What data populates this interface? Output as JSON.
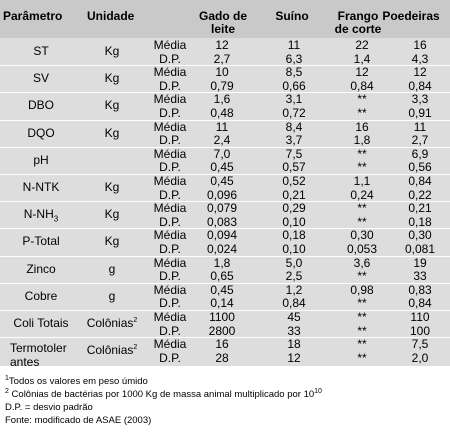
{
  "headers": {
    "param": "Parâmetro",
    "unit": "Unidade",
    "gado_line1": "Gado de",
    "gado_line2": "leite",
    "suino": "Suíno",
    "frango_line1": "Frango",
    "frango_line2": "de corte",
    "poedeiras": "Poedeiras"
  },
  "rows": [
    {
      "param": "ST",
      "unit": "Kg",
      "media": [
        "12",
        "11",
        "22",
        "16"
      ],
      "dp": [
        "2,7",
        "6,3",
        "1,4",
        "4,3"
      ]
    },
    {
      "param": "SV",
      "unit": "Kg",
      "media": [
        "10",
        "8,5",
        "12",
        "12"
      ],
      "dp": [
        "0,79",
        "0,66",
        "0,84",
        "0,84"
      ]
    },
    {
      "param": "DBO",
      "unit": "Kg",
      "media": [
        "1,6",
        "3,1",
        "**",
        "3,3"
      ],
      "dp": [
        "0,48",
        "0,72",
        "**",
        "0,91"
      ]
    },
    {
      "param": "DQO",
      "unit": "Kg",
      "media": [
        "11",
        "8,4",
        "16",
        "11"
      ],
      "dp": [
        "2,4",
        "3,7",
        "1,8",
        "2,7"
      ]
    },
    {
      "param": "pH",
      "unit": "",
      "media": [
        "7,0",
        "7,5",
        "**",
        "6,9"
      ],
      "dp": [
        "0,45",
        "0,57",
        "**",
        "0,56"
      ]
    },
    {
      "param": "N-NTK",
      "unit": "Kg",
      "media": [
        "0,45",
        "0,52",
        "1,1",
        "0,84"
      ],
      "dp": [
        "0,096",
        "0,21",
        "0,24",
        "0,22"
      ]
    },
    {
      "param": "N-NH",
      "param_sub": "3",
      "unit": "Kg",
      "media": [
        "0,079",
        "0,29",
        "**",
        "0,21"
      ],
      "dp": [
        "0,083",
        "0,10",
        "**",
        "0,18"
      ]
    },
    {
      "param": "P-Total",
      "unit": "Kg",
      "media": [
        "0,094",
        "0,18",
        "0,30",
        "0,30"
      ],
      "dp": [
        "0,024",
        "0,10",
        "0,053",
        "0,081"
      ]
    },
    {
      "param": "Zinco",
      "unit": "g",
      "media": [
        "1,8",
        "5,0",
        "3,6",
        "19"
      ],
      "dp": [
        "0,65",
        "2,5",
        "**",
        "33"
      ]
    },
    {
      "param": "Cobre",
      "unit": "g",
      "media": [
        "0,45",
        "1,2",
        "0,98",
        "0,83"
      ],
      "dp": [
        "0,14",
        "0,84",
        "**",
        "0,84"
      ]
    },
    {
      "param": "Coli Totais",
      "unit": "Colônias",
      "unit_sup": "2",
      "media": [
        "1100",
        "45",
        "**",
        "110"
      ],
      "dp": [
        "2800",
        "33",
        "**",
        "100"
      ]
    },
    {
      "param": "Termotoler",
      "param_line2": "antes",
      "unit": "Colônias",
      "unit_sup": "2",
      "media": [
        "16",
        "18",
        "**",
        "7,5"
      ],
      "dp": [
        "28",
        "12",
        "**",
        "2,0"
      ]
    }
  ],
  "stat_labels": {
    "media": "Média",
    "dp": "D.P."
  },
  "footnotes": {
    "note1_sup": "1",
    "note1": "Todos os valores em peso úmido",
    "note2_sup": "2",
    "note2": " Colônias de bactérias por 1000 Kg de massa animal multiplicado por 10",
    "note2_exp": "10",
    "note3": "D.P. = desvio padrão",
    "note4": "Fonte: modificado de ASAE (2003)"
  }
}
